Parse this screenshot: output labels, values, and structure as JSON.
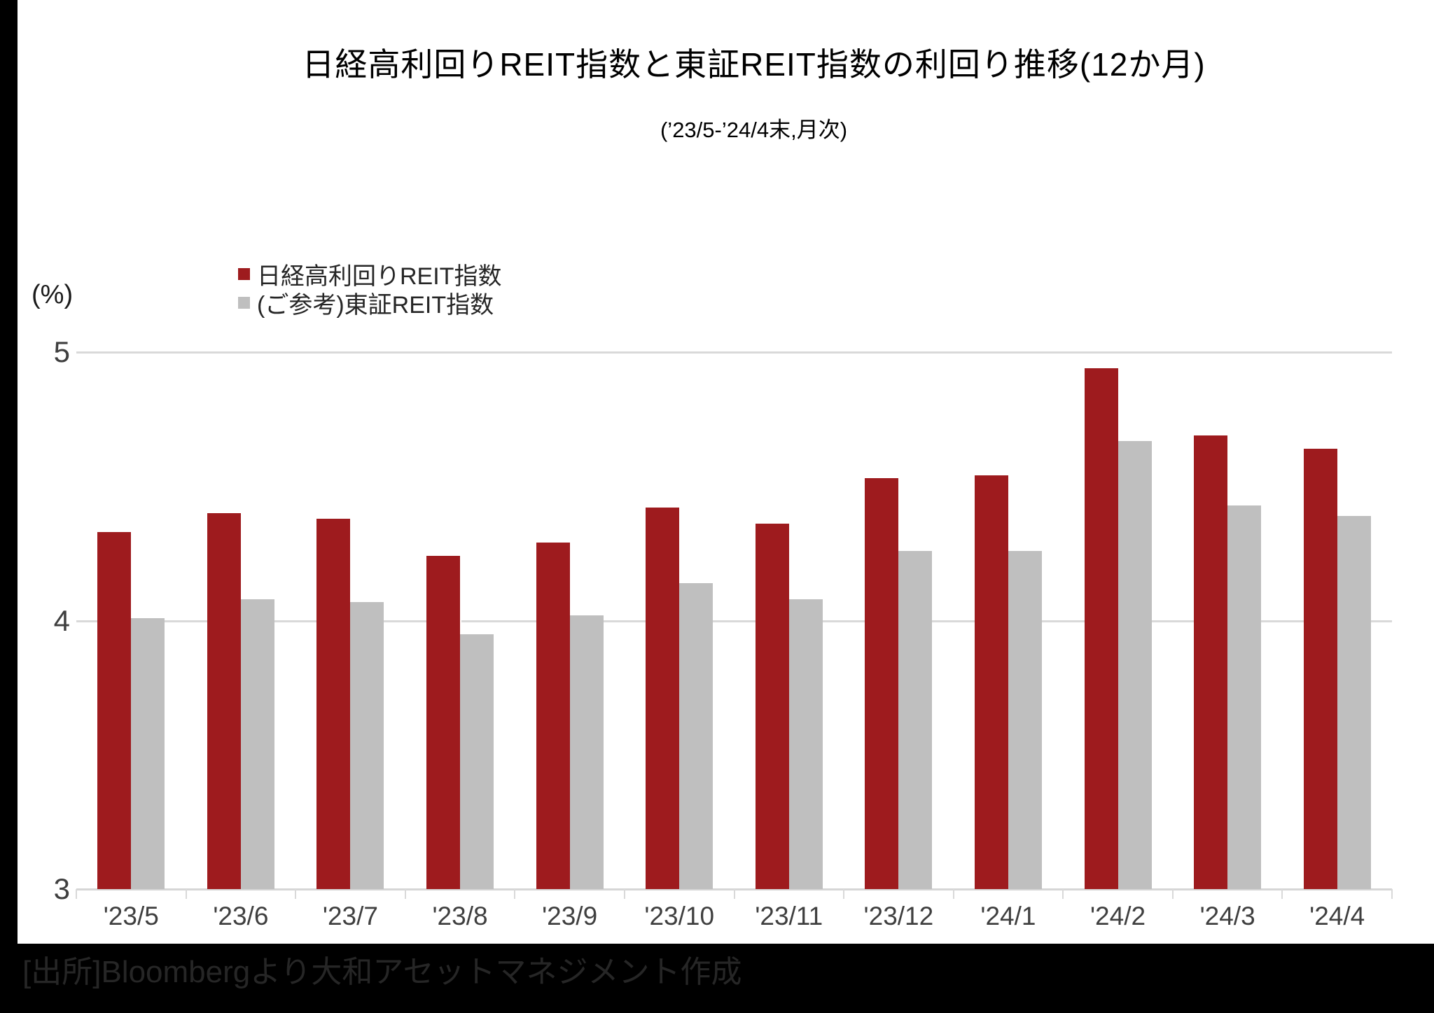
{
  "title": "日経高利回りREIT指数と東証REIT指数の利回り推移(12か月)",
  "subtitle": "(’23/5-’24/4末,月次)",
  "footer": "[出所]Bloombergより大和アセットマネジメント作成",
  "colors": {
    "nikkei_red": "#9E1B1E",
    "tse_gray": "#BFBFBF",
    "gridline": "#D9D9D9",
    "frame_black": "#000000"
  },
  "chart_data": {
    "type": "bar",
    "title": "日経高利回りREIT指数と東証REIT指数の利回り推移(12か月)",
    "subtitle": "(’23/5-’24/4末,月次)",
    "categories": [
      "'23/5",
      "'23/6",
      "'23/7",
      "'23/8",
      "'23/9",
      "'23/10",
      "'23/11",
      "'23/12",
      "'24/1",
      "'24/2",
      "'24/3",
      "'24/4"
    ],
    "series": [
      {
        "name": "日経高利回りREIT指数",
        "color": "#9E1B1E",
        "values": [
          4.33,
          4.4,
          4.38,
          4.24,
          4.29,
          4.42,
          4.36,
          4.53,
          4.54,
          4.94,
          4.69,
          4.64
        ]
      },
      {
        "name": "(ご参考)東証REIT指数",
        "color": "#BFBFBF",
        "values": [
          4.01,
          4.08,
          4.07,
          3.95,
          4.02,
          4.14,
          4.08,
          4.26,
          4.26,
          4.67,
          4.43,
          4.39
        ]
      }
    ],
    "xlabel": "",
    "ylabel": "(%)",
    "ylim": [
      3,
      5
    ],
    "yticks": [
      5,
      4,
      3
    ],
    "grid": true,
    "legend_position": "top-left-inside"
  }
}
